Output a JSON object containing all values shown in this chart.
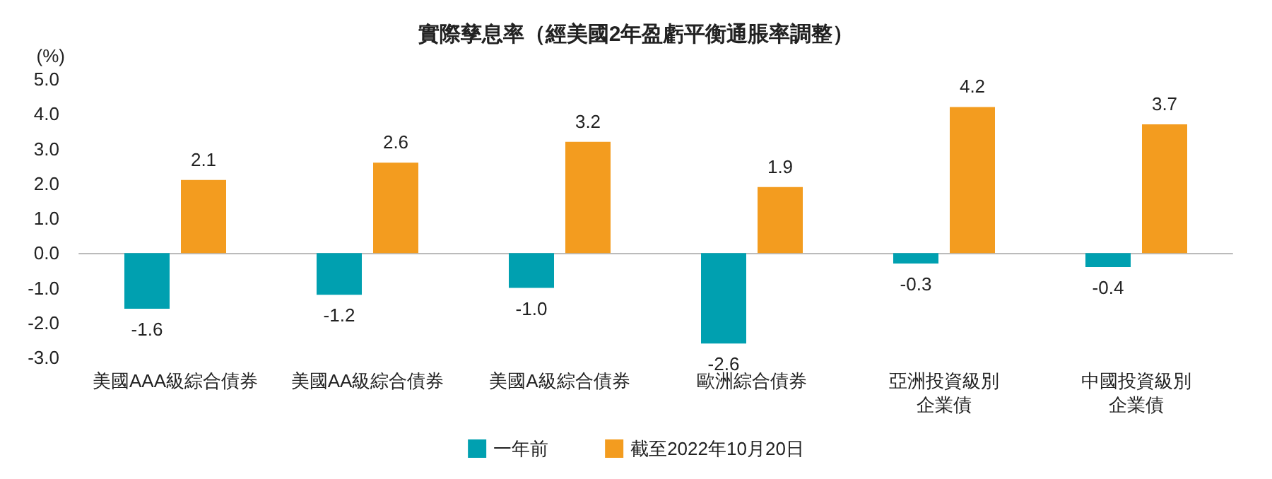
{
  "chart_data": {
    "type": "bar",
    "title": "實際孳息率（經美國2年盈虧平衡通脹率調整）",
    "ylabel": "(%)",
    "categories": [
      "美國AAA級綜合債券",
      "美國AA級綜合債券",
      "美國A級綜合債券",
      "歐洲綜合債券",
      "亞洲投資級別企業債",
      "中國投資級別企業債"
    ],
    "series": [
      {
        "name": "一年前",
        "color": "#00a0b0",
        "values": [
          -1.6,
          -1.2,
          -1.0,
          -2.6,
          -0.3,
          -0.4
        ],
        "value_labels": [
          "-1.6",
          "-1.2",
          "-1.0",
          "-2.6",
          "-0.3",
          "-0.4"
        ]
      },
      {
        "name": "截至2022年10月20日",
        "color": "#f39c1f",
        "values": [
          2.1,
          2.6,
          3.2,
          1.9,
          4.2,
          3.7
        ],
        "value_labels": [
          "2.1",
          "2.6",
          "3.2",
          "1.9",
          "4.2",
          "3.7"
        ]
      }
    ],
    "ylim": [
      -3,
      5
    ],
    "yticks": [
      {
        "value": -3,
        "label": "-3.0"
      },
      {
        "value": -2,
        "label": "-2.0"
      },
      {
        "value": -1,
        "label": "-1.0"
      },
      {
        "value": 0,
        "label": "0.0"
      },
      {
        "value": 1,
        "label": "1.0"
      },
      {
        "value": 2,
        "label": "2.0"
      },
      {
        "value": 3,
        "label": "3.0"
      },
      {
        "value": 4,
        "label": "4.0"
      },
      {
        "value": 5,
        "label": "5.0"
      }
    ],
    "legend": "bottom"
  }
}
